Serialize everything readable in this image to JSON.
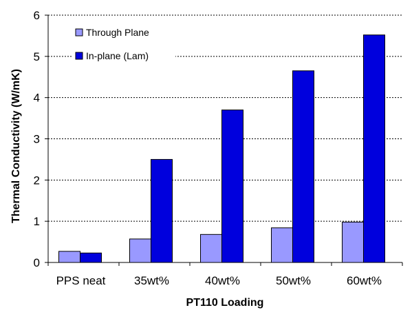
{
  "chart_data": {
    "type": "bar",
    "xlabel": "PT110 Loading",
    "ylabel": "Thermal Conductivity (W/mK)",
    "categories": [
      "PPS neat",
      "35wt%",
      "40wt%",
      "50wt%",
      "60wt%"
    ],
    "series": [
      {
        "name": "Through Plane",
        "values": [
          0.27,
          0.57,
          0.68,
          0.84,
          0.98
        ],
        "color": "#9999ff"
      },
      {
        "name": "In-plane (Lam)",
        "values": [
          0.23,
          2.5,
          3.7,
          4.65,
          5.52
        ],
        "color": "#0000dd"
      }
    ],
    "ylim": [
      0,
      6
    ],
    "yticks": [
      "0",
      "1",
      "2",
      "3",
      "4",
      "5",
      "6"
    ],
    "grid": true,
    "legend_position": "top-left"
  }
}
